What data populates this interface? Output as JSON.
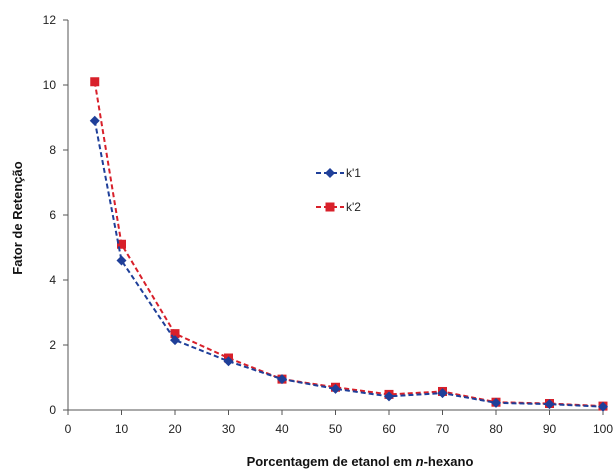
{
  "chart_data": {
    "type": "line",
    "title": "",
    "xlabel": "Porcentagem de etanol em ",
    "xlabel_italic": "n",
    "xlabel_suffix": "-hexano",
    "ylabel": "Fator de Retenção",
    "x": [
      5,
      10,
      20,
      30,
      40,
      50,
      60,
      70,
      80,
      90,
      100
    ],
    "xlim": [
      0,
      100
    ],
    "ylim": [
      0,
      12
    ],
    "xticks": [
      0,
      10,
      20,
      30,
      40,
      50,
      60,
      70,
      80,
      90,
      100
    ],
    "yticks": [
      0,
      2,
      4,
      6,
      8,
      10,
      12
    ],
    "grid": false,
    "legend_position": "center-right",
    "series": [
      {
        "name": "k'1",
        "color": "#1f3f99",
        "marker": "diamond",
        "values": [
          8.9,
          4.6,
          2.15,
          1.5,
          0.95,
          0.65,
          0.42,
          0.52,
          0.22,
          0.18,
          0.1
        ]
      },
      {
        "name": "k'2",
        "color": "#d8202a",
        "marker": "square",
        "values": [
          10.1,
          5.1,
          2.35,
          1.6,
          0.95,
          0.7,
          0.48,
          0.57,
          0.24,
          0.2,
          0.12
        ]
      }
    ]
  }
}
